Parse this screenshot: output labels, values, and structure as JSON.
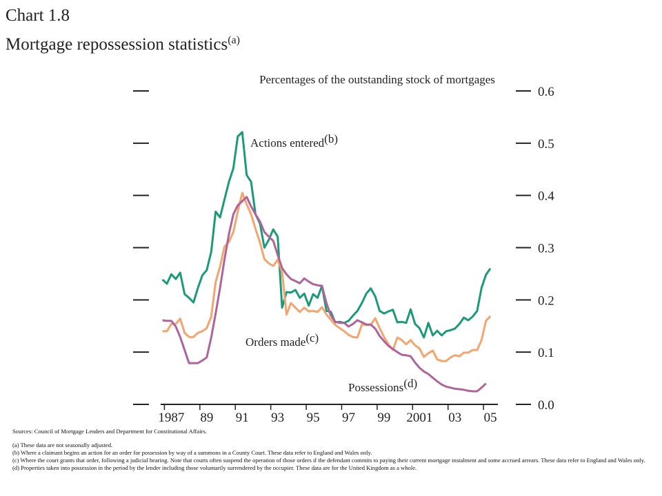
{
  "chart_data": {
    "type": "line",
    "title": "Chart 1.8",
    "subtitle": "Mortgage repossession statistics",
    "subtitle_note": "(a)",
    "ylabel": "Percentages of the outstanding stock of mortgages",
    "x": [
      1987,
      1987.25,
      1987.5,
      1987.75,
      1988,
      1988.25,
      1988.5,
      1988.75,
      1989,
      1989.25,
      1989.5,
      1989.75,
      1990,
      1990.25,
      1990.5,
      1990.75,
      1991,
      1991.25,
      1991.5,
      1991.75,
      1992,
      1992.25,
      1992.5,
      1992.75,
      1993,
      1993.25,
      1993.5,
      1993.75,
      1994,
      1994.25,
      1994.5,
      1994.75,
      1995,
      1995.25,
      1995.5,
      1995.75,
      1996,
      1996.25,
      1996.5,
      1996.75,
      1997,
      1997.25,
      1997.5,
      1997.75,
      1998,
      1998.25,
      1998.5,
      1998.75,
      1999,
      1999.25,
      1999.5,
      1999.75,
      2000,
      2000.25,
      2000.5,
      2000.75,
      2001,
      2001.25,
      2001.5,
      2001.75,
      2002,
      2002.25,
      2002.5,
      2002.75,
      2003,
      2003.25,
      2003.5,
      2003.75,
      2004,
      2004.25,
      2004.5,
      2004.75,
      2005,
      2005.25,
      2005.5
    ],
    "series": [
      {
        "name": "Actions entered",
        "note": "(b)",
        "color": "#1a9a78",
        "values": [
          0.239,
          0.231,
          0.249,
          0.24,
          0.252,
          0.211,
          0.204,
          0.195,
          0.223,
          0.247,
          0.257,
          0.292,
          0.369,
          0.358,
          0.392,
          0.426,
          0.452,
          0.513,
          0.521,
          0.439,
          0.426,
          0.364,
          0.346,
          0.3,
          0.315,
          0.335,
          0.321,
          0.185,
          0.215,
          0.214,
          0.219,
          0.204,
          0.212,
          0.189,
          0.211,
          0.204,
          0.227,
          0.179,
          0.177,
          0.157,
          0.158,
          0.156,
          0.16,
          0.17,
          0.179,
          0.194,
          0.212,
          0.222,
          0.207,
          0.179,
          0.174,
          0.178,
          0.181,
          0.157,
          0.158,
          0.156,
          0.182,
          0.154,
          0.146,
          0.128,
          0.156,
          0.132,
          0.141,
          0.132,
          0.14,
          0.142,
          0.145,
          0.154,
          0.166,
          0.161,
          0.168,
          0.179,
          0.223,
          0.248,
          0.26
        ]
      },
      {
        "name": "Orders made",
        "note": "(c)",
        "color": "#f4a46c",
        "values": [
          0.14,
          0.14,
          0.154,
          0.154,
          0.164,
          0.137,
          0.129,
          0.129,
          0.137,
          0.14,
          0.146,
          0.168,
          0.234,
          0.264,
          0.302,
          0.311,
          0.33,
          0.369,
          0.405,
          0.383,
          0.364,
          0.336,
          0.31,
          0.278,
          0.27,
          0.265,
          0.277,
          0.253,
          0.172,
          0.194,
          0.185,
          0.177,
          0.185,
          0.178,
          0.179,
          0.177,
          0.186,
          0.172,
          0.162,
          0.152,
          0.146,
          0.14,
          0.133,
          0.129,
          0.128,
          0.153,
          0.152,
          0.152,
          0.165,
          0.146,
          0.129,
          0.115,
          0.104,
          0.128,
          0.123,
          0.115,
          0.123,
          0.113,
          0.107,
          0.091,
          0.098,
          0.103,
          0.086,
          0.083,
          0.083,
          0.09,
          0.094,
          0.092,
          0.099,
          0.099,
          0.104,
          0.104,
          0.123,
          0.16,
          0.169
        ]
      },
      {
        "name": "Possessions",
        "note": "(d)",
        "color": "#b0639a",
        "values": [
          0.161,
          0.16,
          0.16,
          0.149,
          0.129,
          0.104,
          0.079,
          0.079,
          0.079,
          0.084,
          0.09,
          0.128,
          0.174,
          0.223,
          0.277,
          0.326,
          0.364,
          0.381,
          0.389,
          0.397,
          0.379,
          0.364,
          0.35,
          0.33,
          0.321,
          0.313,
          0.286,
          0.261,
          0.249,
          0.24,
          0.236,
          0.232,
          0.241,
          0.235,
          0.23,
          0.228,
          0.227,
          0.194,
          0.17,
          0.158,
          0.156,
          0.156,
          0.149,
          0.154,
          0.161,
          0.157,
          0.153,
          0.153,
          0.145,
          0.131,
          0.121,
          0.112,
          0.106,
          0.1,
          0.095,
          0.094,
          0.092,
          0.08,
          0.07,
          0.063,
          0.058,
          0.051,
          0.044,
          0.038,
          0.034,
          0.032,
          0.03,
          0.029,
          0.028,
          0.026,
          0.025,
          0.025,
          0.032,
          0.04,
          null
        ]
      }
    ],
    "xlim": [
      1986.9,
      2006.0
    ],
    "xticks": [
      {
        "value": 1987.5,
        "label": "1987"
      },
      {
        "value": 1989.5,
        "label": "89"
      },
      {
        "value": 1991.5,
        "label": "91"
      },
      {
        "value": 1993.5,
        "label": "93"
      },
      {
        "value": 1995.5,
        "label": "95"
      },
      {
        "value": 1997.5,
        "label": "97"
      },
      {
        "value": 1999.5,
        "label": "99"
      },
      {
        "value": 2001.5,
        "label": "2001"
      },
      {
        "value": 2003.5,
        "label": "03"
      },
      {
        "value": 2005.5,
        "label": "05"
      }
    ],
    "ylim": [
      0,
      0.6
    ],
    "yticks": [
      {
        "value": 0,
        "label": "0.0"
      },
      0.1,
      0.2,
      0.3,
      0.4,
      0.5,
      0.6
    ],
    "sources": "Sources: Council of Mortgage Lenders and Department for Constitutional Affairs.",
    "footnotes": [
      "(a)  These data are not seasonally adjusted.",
      "(b)  Where a claimant begins an action for an order for possession by way of a summons in a County Court.  These data refer to England and Wales only.",
      "(c)  Where the court grants that order, following a judicial hearing.  Note that courts often suspend the operation of those orders if the defendant commits to paying their current mortgage instalment and some accrued arrears.  These data refer to England and Wales only.",
      "(d)  Properties taken into possession in the period by the lender including those voluntarily surrendered by the occupier.  These data are for the United Kingdom as a whole."
    ]
  }
}
